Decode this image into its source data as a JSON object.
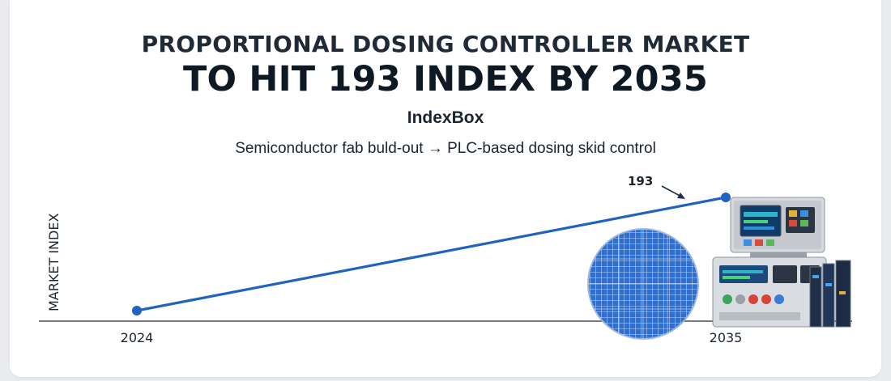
{
  "header": {
    "title_line1": "PROPORTIONAL DOSING CONTROLLER MARKET",
    "title_line2": "TO HIT 193 INDEX BY 2035",
    "source": "IndexBox",
    "subtitle": "Semiconductor fab buld-out → PLC-based dosing skid control"
  },
  "colors": {
    "line": "#1f63c0",
    "axis": "#4a4f57",
    "text": "#1b2430"
  },
  "illustration": {
    "wafer": "silicon-wafer-icon",
    "controller": "plc-controller-icon"
  },
  "chart_data": {
    "type": "line",
    "x": [
      "2024",
      "2035"
    ],
    "series": [
      {
        "values": [
          null,
          193
        ]
      }
    ],
    "xlabel": "",
    "ylabel": "MARKET INDEX",
    "data_labels": [
      "",
      "193"
    ],
    "annotation_arrow": true,
    "grid": false,
    "legend": "none"
  }
}
